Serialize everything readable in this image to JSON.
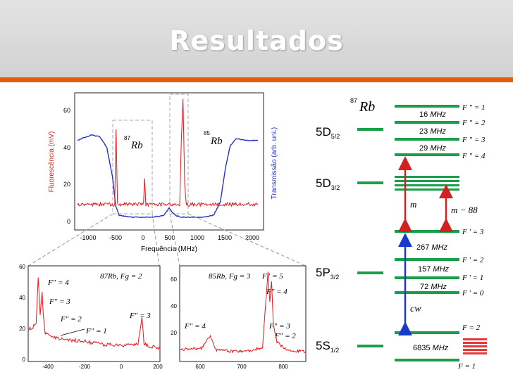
{
  "header": {
    "title": "Resultados"
  },
  "chart_data": [
    {
      "type": "line",
      "title": "",
      "xlabel": "Frequência (MHz)",
      "ylabel": "Fluorescência (mV)",
      "ylabel2": "Transmissão (arb. uni.)",
      "xlim": [
        -1200,
        2200
      ],
      "ylim": [
        -5,
        70
      ],
      "xticks": [
        "-1000",
        "-500",
        "0",
        "500",
        "1000",
        "1500",
        "2000"
      ],
      "yticks": [
        "0",
        "20",
        "40",
        "60"
      ],
      "annotations": [
        "87",
        "Rb",
        "85",
        "Rb"
      ],
      "series": [
        {
          "name": "Transmissão",
          "color": "#2233cc",
          "x": [
            -1150,
            -900,
            -750,
            -620,
            -520,
            -460,
            -400,
            -200,
            0,
            200,
            400,
            450,
            500,
            550,
            620,
            700,
            900,
            1100,
            1300,
            1420,
            1520,
            1600,
            1700,
            1900,
            2100
          ],
          "y": [
            44,
            47,
            46,
            40,
            24,
            8,
            3,
            2,
            2,
            2,
            3,
            5,
            7,
            5,
            3,
            2,
            2,
            2,
            3,
            10,
            30,
            41,
            45,
            44,
            44
          ]
        },
        {
          "name": "Fluorescência",
          "color": "#e8161c",
          "x": [
            -1150,
            -800,
            -600,
            -480,
            -455,
            -430,
            -400,
            -300,
            -200,
            40,
            60,
            80,
            200,
            400,
            690,
            720,
            750,
            780,
            810,
            1000,
            1500,
            2100
          ],
          "y": [
            9,
            9,
            9,
            9,
            50,
            10,
            9,
            9,
            9,
            9,
            24,
            9,
            9,
            9,
            9,
            45,
            66,
            20,
            9,
            9,
            9,
            9
          ]
        }
      ]
    },
    {
      "type": "line",
      "title": "87Rb, Fg = 2",
      "xlim": [
        -460,
        200
      ],
      "ylim": [
        0,
        60
      ],
      "xticks": [
        "-400",
        "-200",
        "0",
        "200"
      ],
      "yticks": [
        "0",
        "20",
        "40",
        "60"
      ],
      "peak_labels": [
        "F\" = 4",
        "F\" = 3",
        "F\" = 2",
        "F\" = 1",
        "F\" = 3"
      ],
      "series": [
        {
          "name": "Fluorescência 87Rb",
          "color": "#e8161c",
          "x": [
            -460,
            -440,
            -420,
            -410,
            -400,
            -390,
            -385,
            -375,
            -360,
            -340,
            -300,
            -200,
            -100,
            0,
            90,
            110,
            120,
            140,
            200
          ],
          "y": [
            20,
            21,
            25,
            52,
            30,
            44,
            30,
            18,
            17,
            16,
            14,
            13,
            11,
            10,
            11,
            28,
            11,
            10,
            8
          ]
        }
      ]
    },
    {
      "type": "line",
      "title": "85Rb, Fg = 3",
      "xlim": [
        500,
        850
      ],
      "ylim": [
        5,
        70
      ],
      "xticks": [
        "600",
        "700",
        "800"
      ],
      "yticks": [
        "20",
        "40",
        "60"
      ],
      "peak_labels": [
        "F\" = 5",
        "F\" = 4",
        "F\" = 4",
        "F\" = 3",
        "F\" = 2"
      ],
      "series": [
        {
          "name": "Fluorescência 85Rb",
          "color": "#e8161c",
          "x": [
            500,
            560,
            585,
            600,
            640,
            700,
            730,
            745,
            750,
            755,
            760,
            770,
            790,
            820,
            850
          ],
          "y": [
            13,
            14,
            22,
            13,
            12,
            12,
            15,
            66,
            45,
            60,
            30,
            18,
            14,
            12,
            12
          ]
        }
      ]
    }
  ],
  "levels": {
    "isotope": {
      "sup": "87",
      "name": "Rb"
    },
    "states": [
      "5D",
      "5/2",
      "5D",
      "3/2",
      "5P",
      "3/2",
      "5S",
      "1/2"
    ],
    "spacings": [
      "16",
      "MHz",
      "23",
      "MHz",
      "29",
      "MHz",
      "267",
      "MHz",
      "157",
      "MHz",
      "72",
      "MHz",
      "6835",
      "MHz"
    ],
    "f_double": [
      "F \" = 1",
      "F \" = 2",
      "F \" = 3",
      "F \" = 4"
    ],
    "f_single": [
      "F ' = 3",
      "F ' = 2",
      "F ' = 1",
      "F ' = 0"
    ],
    "f_ground": [
      "F = 2",
      "F = 1"
    ],
    "arrows": [
      "m",
      "m − 88",
      "cw"
    ]
  }
}
